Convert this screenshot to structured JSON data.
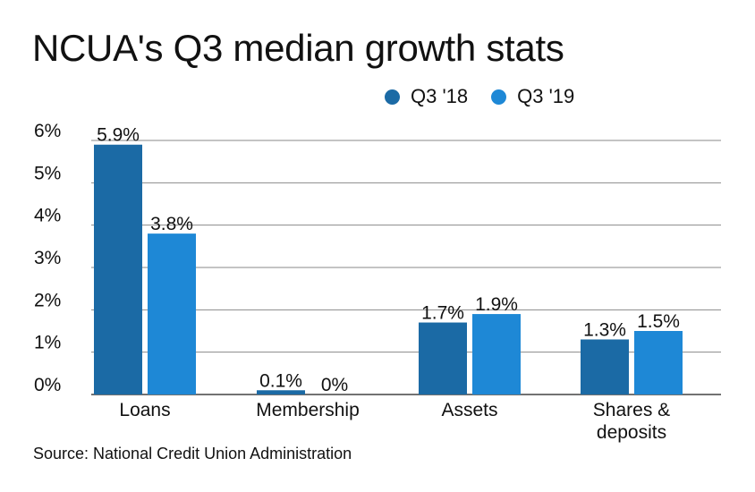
{
  "chart_data": {
    "type": "bar",
    "title": "NCUA's Q3 median growth stats",
    "categories": [
      [
        "Loans"
      ],
      [
        "Membership"
      ],
      [
        "Assets"
      ],
      [
        "Shares &",
        "deposits"
      ]
    ],
    "series": [
      {
        "name": "Q3 '18",
        "color": "#1b6aa5",
        "values": [
          5.9,
          0.1,
          1.7,
          1.3
        ],
        "labels": [
          "5.9%",
          "0.1%",
          "1.7%",
          "1.3%"
        ]
      },
      {
        "name": "Q3 '19",
        "color": "#1e88d6",
        "values": [
          3.8,
          0.0,
          1.9,
          1.5
        ],
        "labels": [
          "3.8%",
          "0%",
          "1.9%",
          "1.5%"
        ]
      }
    ],
    "ylim": [
      0,
      6
    ],
    "yticks": [
      0,
      1,
      2,
      3,
      4,
      5,
      6
    ],
    "ytick_labels": [
      "0%",
      "1%",
      "2%",
      "3%",
      "4%",
      "5%",
      "6%"
    ],
    "grid": true,
    "legend_position": "top-right",
    "xlabel": "",
    "ylabel": ""
  },
  "source": "Source: National Credit Union Administration"
}
